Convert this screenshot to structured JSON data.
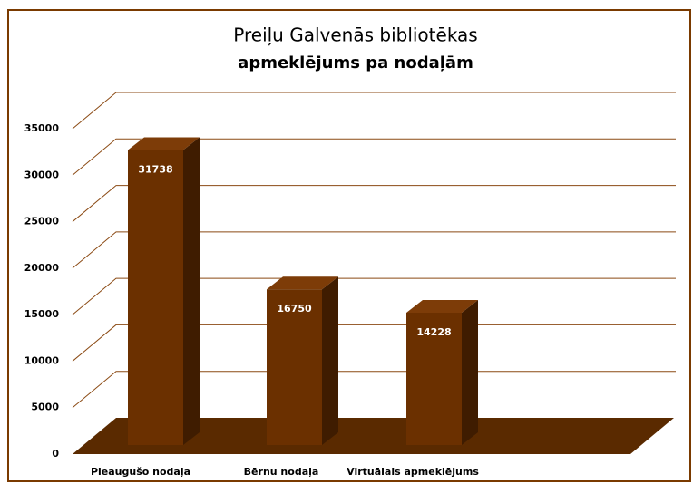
{
  "chart_data": {
    "type": "bar3d",
    "title": "Preiļu Galvenās bibliotēkas",
    "subtitle": "apmeklējums pa nodaļām",
    "categories": [
      "Pieaugušo nodaļa",
      "Bērnu nodaļa",
      "Virtuālais apmeklējums"
    ],
    "values": [
      31738,
      16750,
      14228
    ],
    "color": "#6b3000",
    "ylim": [
      0,
      35000
    ],
    "yticks": [
      0,
      5000,
      10000,
      15000,
      20000,
      25000,
      30000,
      35000
    ],
    "grid": true
  }
}
